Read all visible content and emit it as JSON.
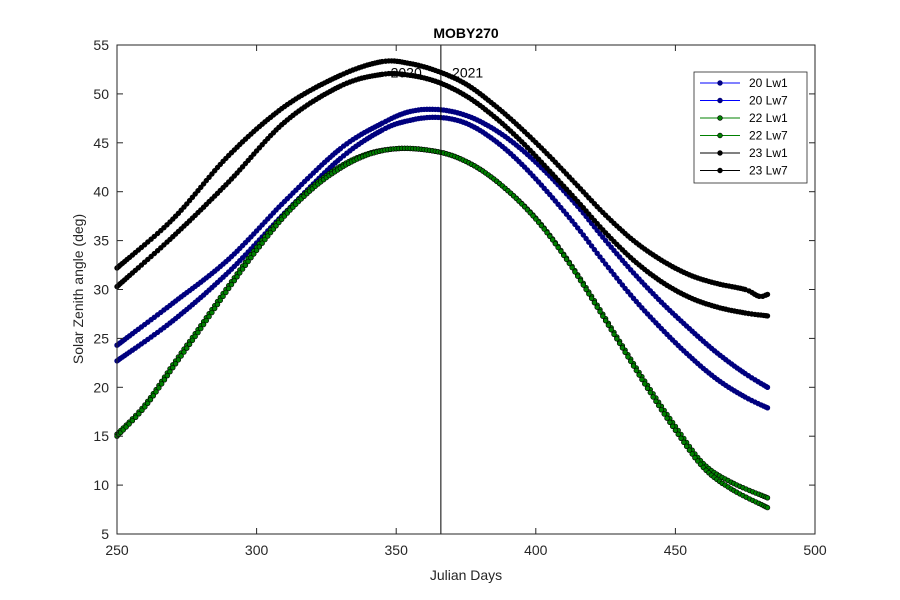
{
  "chart_data": {
    "type": "line",
    "title": "MOBY270",
    "xlabel": "Julian Days",
    "ylabel": "Solar Zenith angle (deg)",
    "xlim": [
      250,
      500
    ],
    "ylim": [
      5,
      55
    ],
    "xticks": [
      "250",
      "300",
      "350",
      "400",
      "450",
      "500"
    ],
    "yticks": [
      "5",
      "10",
      "15",
      "20",
      "25",
      "30",
      "35",
      "40",
      "45",
      "50",
      "55"
    ],
    "grid": false,
    "legend_position": "top-right",
    "annotations": [
      {
        "text": "2020",
        "x": 348,
        "y": 52.2
      },
      {
        "text": "2021",
        "x": 370,
        "y": 52.2
      }
    ],
    "vline_x": 366,
    "series": [
      {
        "name": "20 Lw1",
        "color": "#0000ff",
        "marker_fill": "#00007f",
        "x": [
          250,
          270,
          290,
          310,
          330,
          345,
          355,
          365,
          375,
          385,
          395,
          405,
          415,
          425,
          435,
          445,
          455,
          465,
          475,
          483
        ],
        "y": [
          24.3,
          28.6,
          33.1,
          39.0,
          44.4,
          47.0,
          48.2,
          48.4,
          47.8,
          46.4,
          44.3,
          41.6,
          38.5,
          35.0,
          31.7,
          28.7,
          26.0,
          23.5,
          21.4,
          20.0
        ]
      },
      {
        "name": "20 Lw7",
        "color": "#0000ff",
        "marker_fill": "#00007f",
        "x": [
          250,
          270,
          290,
          310,
          330,
          345,
          355,
          365,
          375,
          385,
          395,
          405,
          415,
          425,
          435,
          445,
          455,
          465,
          475,
          483
        ],
        "y": [
          22.7,
          26.8,
          31.8,
          37.8,
          43.4,
          46.3,
          47.3,
          47.6,
          47.0,
          45.3,
          42.8,
          39.7,
          36.3,
          32.6,
          29.1,
          26.0,
          23.2,
          20.8,
          19.0,
          17.9
        ]
      },
      {
        "name": "22 Lw1",
        "color": "#008000",
        "marker_fill": "#008000",
        "x": [
          250,
          260,
          270,
          280,
          290,
          300,
          310,
          320,
          330,
          340,
          350,
          360,
          370,
          380,
          390,
          400,
          410,
          420,
          430,
          440,
          450,
          460,
          470,
          483
        ],
        "y": [
          15.2,
          18.2,
          22.3,
          26.3,
          30.4,
          34.3,
          37.7,
          40.5,
          42.6,
          43.9,
          44.4,
          44.3,
          43.7,
          42.3,
          40.1,
          37.3,
          33.6,
          29.3,
          24.7,
          20.2,
          16.0,
          12.2,
          10.3,
          8.7
        ]
      },
      {
        "name": "22 Lw7",
        "color": "#008000",
        "marker_fill": "#008000",
        "x": [
          250,
          260,
          270,
          280,
          290,
          300,
          310,
          320,
          330,
          340,
          350,
          360,
          370,
          380,
          390,
          400,
          410,
          420,
          430,
          440,
          450,
          460,
          470,
          483
        ],
        "y": [
          15.0,
          18.0,
          22.0,
          26.0,
          30.1,
          34.0,
          37.5,
          40.3,
          42.4,
          43.8,
          44.4,
          44.3,
          43.7,
          42.3,
          40.1,
          37.2,
          33.5,
          29.1,
          24.5,
          19.9,
          15.6,
          11.8,
          9.6,
          7.7
        ]
      },
      {
        "name": "23 Lw1",
        "color": "#000000",
        "marker_fill": "#000000",
        "x": [
          250,
          270,
          290,
          310,
          330,
          345,
          355,
          365,
          375,
          385,
          395,
          405,
          415,
          425,
          435,
          445,
          455,
          465,
          475,
          480,
          483
        ],
        "y": [
          32.2,
          37.2,
          43.7,
          48.7,
          51.9,
          53.3,
          53.1,
          52.3,
          51.0,
          48.9,
          46.4,
          43.6,
          40.6,
          37.6,
          35.0,
          33.0,
          31.5,
          30.6,
          30.0,
          29.3,
          29.5
        ]
      },
      {
        "name": "23 Lw7",
        "color": "#000000",
        "marker_fill": "#000000",
        "x": [
          250,
          270,
          290,
          310,
          330,
          345,
          355,
          365,
          375,
          385,
          395,
          405,
          415,
          425,
          435,
          445,
          455,
          465,
          475,
          483
        ],
        "y": [
          30.3,
          35.4,
          41.0,
          47.1,
          50.8,
          52.0,
          51.9,
          51.2,
          49.8,
          47.7,
          45.1,
          42.1,
          39.0,
          35.8,
          33.0,
          30.8,
          29.2,
          28.2,
          27.6,
          27.3
        ]
      }
    ]
  }
}
